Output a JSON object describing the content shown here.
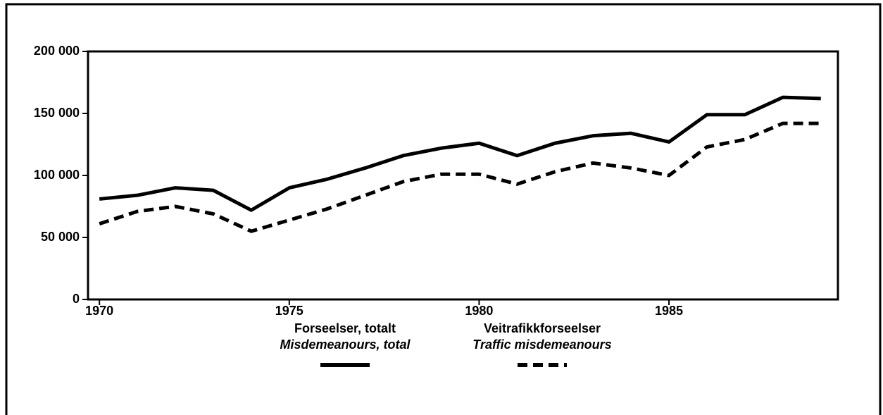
{
  "chart_data": {
    "type": "line",
    "x": [
      1970,
      1971,
      1972,
      1973,
      1974,
      1975,
      1976,
      1977,
      1978,
      1979,
      1980,
      1981,
      1982,
      1983,
      1984,
      1985,
      1986,
      1987,
      1988,
      1989
    ],
    "series": [
      {
        "name": "Forseelser, totalt",
        "subname": "Misdemeanours, total",
        "color": "#000000",
        "dash": false,
        "values": [
          81000,
          84000,
          90000,
          88000,
          72000,
          90000,
          97000,
          106000,
          116000,
          122000,
          126000,
          116000,
          126000,
          132000,
          134000,
          127000,
          149000,
          149000,
          163000,
          162000
        ]
      },
      {
        "name": "Veitrafikkforseelser",
        "subname": "Traffic misdemeanours",
        "color": "#000000",
        "dash": true,
        "values": [
          61000,
          71000,
          75000,
          69000,
          55000,
          64000,
          73000,
          84000,
          95000,
          101000,
          101000,
          93000,
          103000,
          110000,
          106000,
          100000,
          123000,
          129000,
          142000,
          142000
        ]
      }
    ],
    "xlim": [
      1969.7,
      1989.45
    ],
    "xticks": [
      1970,
      1975,
      1980,
      1985
    ],
    "ylim": [
      0,
      200000
    ],
    "yticks": [
      0,
      {
        "value": 50000,
        "label": "50 000"
      },
      {
        "value": 100000,
        "label": "100 000"
      },
      {
        "value": 150000,
        "label": "150 000"
      },
      {
        "value": 200000,
        "label": "200 000"
      }
    ]
  }
}
